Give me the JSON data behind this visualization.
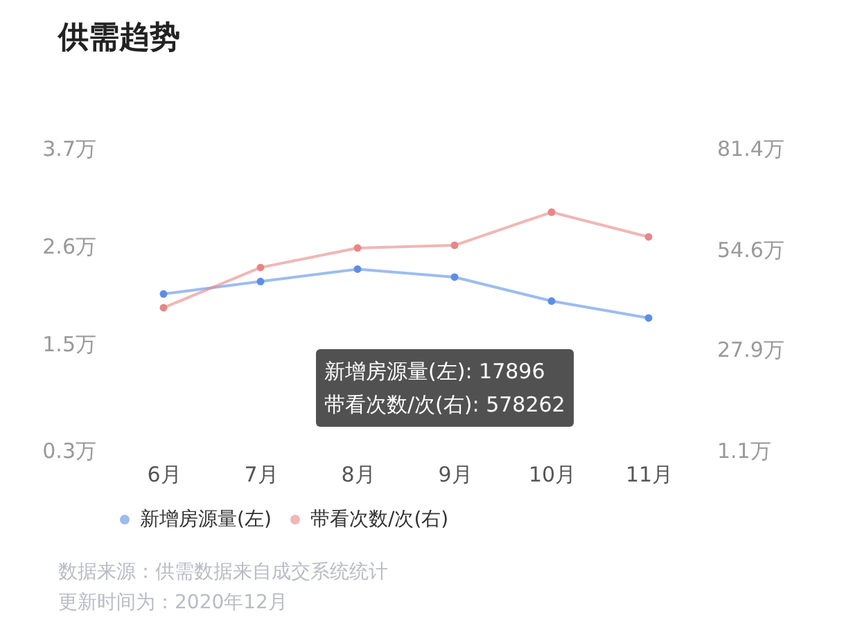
{
  "chart_data": {
    "type": "line",
    "title": "供需趋势",
    "categories": [
      "6月",
      "7月",
      "8月",
      "9月",
      "10月",
      "11月"
    ],
    "series": [
      {
        "name": "新增房源量(左)",
        "color": "#5b8fe6",
        "values": [
          2.06,
          2.2,
          2.34,
          2.25,
          1.98,
          1.7896
        ]
      },
      {
        "name": "带看次数/次(右)",
        "color": "#e88686",
        "axis": "y2",
        "values": [
          39.0,
          49.7,
          54.9,
          55.6,
          64.4,
          57.8262
        ]
      }
    ],
    "ylim": [
      0.3,
      3.7
    ],
    "yticks": [
      {
        "value": 0.3,
        "label": "0.3万"
      },
      {
        "value": 1.5,
        "label": "1.5万"
      },
      {
        "value": 2.6,
        "label": "2.6万"
      },
      {
        "value": 3.7,
        "label": "3.7万"
      }
    ],
    "y2lim": [
      1.1,
      81.4
    ],
    "y2ticks": [
      {
        "value": 1.1,
        "label": "1.1万"
      },
      {
        "value": 27.9,
        "label": "27.9万"
      },
      {
        "value": 54.6,
        "label": "54.6万"
      },
      {
        "value": 81.4,
        "label": "81.4万"
      }
    ],
    "grid": false,
    "legend": "bottom",
    "marker": "circle",
    "annotations": [
      "新增房源量(左): 17896",
      "带看次数/次(右): 578262",
      "数据来源：供需数据来自成交系统统计",
      "更新时间为：2020年12月"
    ]
  }
}
